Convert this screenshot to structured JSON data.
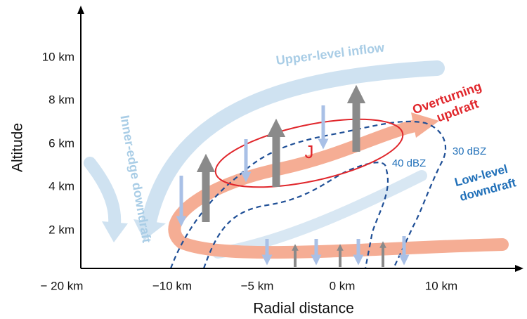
{
  "axes": {
    "y_label": "Altitude",
    "x_label": "Radial distance",
    "y_ticks": [
      "10 km",
      "8 km",
      "6 km",
      "4 km",
      "2 km"
    ],
    "x_ticks": [
      "− 20 km",
      "−10 km",
      "−5 km",
      "0 km",
      "10 km"
    ]
  },
  "annotations": {
    "upper_level_inflow": "Upper-level inflow",
    "inner_edge_downdraft": "Inner-edge downdraft",
    "overturning_updraft": [
      "Overturning",
      "updraft"
    ],
    "low_level_downdraft": [
      "Low-level",
      "downdraft"
    ],
    "contour_40": "40 dBZ",
    "contour_30": "30 dBZ",
    "jet": "J"
  }
}
